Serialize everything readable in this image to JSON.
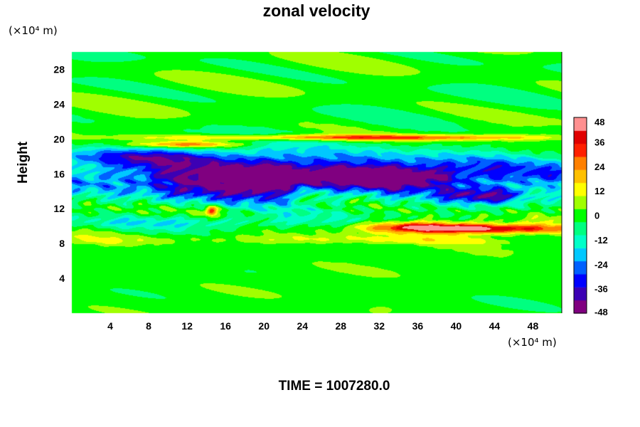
{
  "title": "zonal velocity",
  "y_unit": "(×10⁴ m)",
  "x_unit": "(×10⁴ m)",
  "time_label": "TIME = 1007280.0",
  "chart_data": {
    "type": "heatmap",
    "title": "zonal velocity",
    "ylabel": "Height",
    "xlabel": "",
    "x_unit": "×10⁴ m",
    "y_unit": "×10⁴ m",
    "xlim": [
      0,
      51
    ],
    "ylim": [
      0,
      30
    ],
    "x_ticks": [
      4,
      8,
      12,
      16,
      20,
      24,
      28,
      32,
      36,
      40,
      44,
      48
    ],
    "y_ticks": [
      4,
      8,
      12,
      16,
      20,
      24,
      28
    ],
    "colorbar": {
      "range": [
        -48,
        48
      ],
      "tick_labels": [
        48,
        36,
        24,
        12,
        0,
        -12,
        -24,
        -36,
        -48
      ],
      "colors": [
        "#800080",
        "#3c00b4",
        "#0000ff",
        "#0060ff",
        "#00c8ff",
        "#00ffc8",
        "#00ff80",
        "#00ff00",
        "#a0ff00",
        "#ffff00",
        "#ffc000",
        "#ff8000",
        "#ff2000",
        "#e00000",
        "#ff9090"
      ]
    },
    "features": [
      {
        "kind": "easterly_jet",
        "description": "strong negative zonal velocity band",
        "x_range": [
          0,
          51
        ],
        "y_range": [
          12,
          19
        ],
        "min_value": -48
      },
      {
        "kind": "westerly_jet",
        "description": "positive zonal velocity band",
        "x_range": [
          32,
          51
        ],
        "y_range": [
          9,
          10.5
        ],
        "max_value": 48
      },
      {
        "kind": "westerly_band",
        "description": "thin positive band near 20",
        "x_range": [
          4,
          51
        ],
        "y_range": [
          19.3,
          20.8
        ],
        "max_value": 40
      },
      {
        "kind": "near_zero",
        "description": "weak winds in lower layer",
        "x_range": [
          0,
          51
        ],
        "y_range": [
          0,
          8
        ],
        "value": 0
      }
    ],
    "annotations": [
      "TIME = 1007280.0"
    ],
    "legend": "colorbar right"
  }
}
